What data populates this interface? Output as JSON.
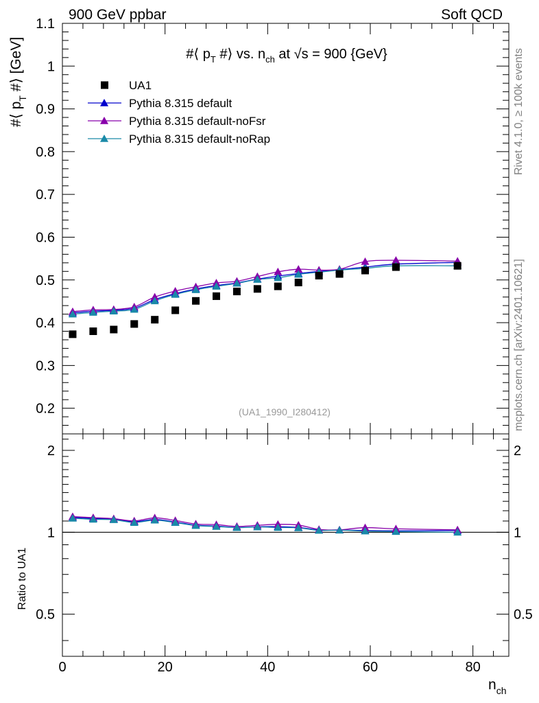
{
  "header": {
    "left": "900 GeV ppbar",
    "right": "Soft QCD"
  },
  "side_labels": {
    "rivet": "Rivet 4.1.0, ≥ 100k events",
    "mcplots": "mcplots.cern.ch [arXiv:2401.10621]"
  },
  "chart_data": {
    "type": "scatter",
    "title": "#⟨ pT #⟩ vs. nch at √s = 900 {GeV}",
    "title_parts": {
      "prefix": "#⟨ p",
      "sub1": "T",
      "mid": " #⟩ vs. n",
      "sub2": "ch",
      "suffix": " at √s = 900 {GeV}"
    },
    "ylabel": "#⟨ pT #⟩ [GeV]",
    "ylabel_parts": {
      "prefix": "#⟨ p",
      "sub": "T",
      "suffix": " #⟩ [GeV]"
    },
    "xlabel": "nch",
    "xlabel_parts": {
      "main": "n",
      "sub": "ch"
    },
    "ratio_ylabel": "Ratio to UA1",
    "watermark": "(UA1_1990_I280412)",
    "xlim": [
      0,
      87
    ],
    "ylim": [
      0.14,
      1.1
    ],
    "ratio_ylim": [
      0.35,
      2.3
    ],
    "xticks": [
      0,
      20,
      40,
      60,
      80
    ],
    "yticks": [
      0.2,
      0.3,
      0.4,
      0.5,
      0.6,
      0.7,
      0.8,
      0.9,
      1,
      1.1
    ],
    "ratio_yticks": [
      0.5,
      1,
      2
    ],
    "x": [
      2,
      6,
      10,
      14,
      18,
      22,
      26,
      30,
      34,
      38,
      42,
      46,
      50,
      54,
      59,
      65,
      77
    ],
    "series": [
      {
        "name": "UA1",
        "marker": "square",
        "color": "#000000",
        "values": [
          0.373,
          0.38,
          0.384,
          0.397,
          0.407,
          0.429,
          0.451,
          0.462,
          0.473,
          0.479,
          0.485,
          0.494,
          0.51,
          0.514,
          0.522,
          0.53,
          0.533
        ]
      },
      {
        "name": "Pythia 8.315 default",
        "marker": "triangle",
        "color": "#0000cc",
        "values": [
          0.423,
          0.427,
          0.429,
          0.434,
          0.454,
          0.468,
          0.479,
          0.487,
          0.493,
          0.502,
          0.509,
          0.515,
          0.52,
          0.524,
          0.53,
          0.537,
          0.541
        ],
        "ratio": [
          1.134,
          1.124,
          1.117,
          1.093,
          1.115,
          1.091,
          1.062,
          1.054,
          1.042,
          1.048,
          1.049,
          1.042,
          1.02,
          1.019,
          1.015,
          1.013,
          1.015
        ]
      },
      {
        "name": "Pythia 8.315 default-noFsr",
        "marker": "triangle",
        "color": "#8800aa",
        "values": [
          0.426,
          0.43,
          0.431,
          0.437,
          0.46,
          0.474,
          0.484,
          0.493,
          0.497,
          0.508,
          0.519,
          0.525,
          0.523,
          0.525,
          0.543,
          0.546,
          0.544
        ],
        "ratio": [
          1.142,
          1.132,
          1.122,
          1.101,
          1.13,
          1.105,
          1.073,
          1.067,
          1.051,
          1.061,
          1.07,
          1.063,
          1.025,
          1.021,
          1.04,
          1.03,
          1.021
        ]
      },
      {
        "name": "Pythia 8.315 default-noRap",
        "marker": "triangle",
        "color": "#1a8aa8",
        "values": [
          0.42,
          0.424,
          0.427,
          0.431,
          0.451,
          0.466,
          0.477,
          0.485,
          0.492,
          0.501,
          0.505,
          0.513,
          0.518,
          0.523,
          0.527,
          0.533,
          0.533
        ],
        "ratio": [
          1.126,
          1.116,
          1.112,
          1.086,
          1.108,
          1.086,
          1.058,
          1.05,
          1.04,
          1.046,
          1.041,
          1.038,
          1.016,
          1.018,
          1.01,
          1.006,
          1.0
        ]
      }
    ]
  }
}
